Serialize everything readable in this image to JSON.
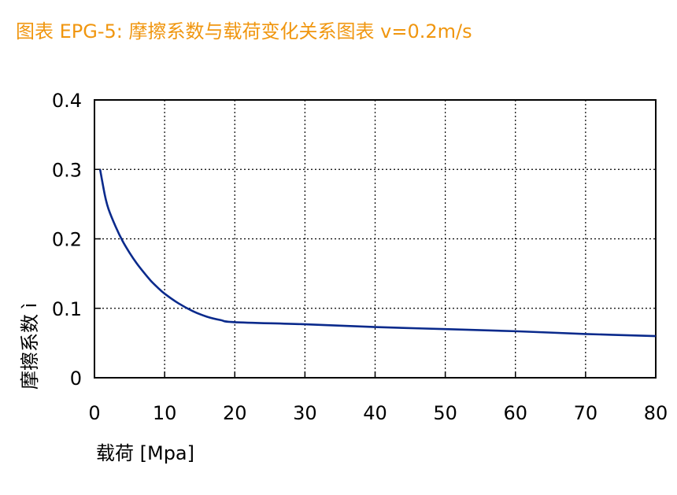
{
  "chart_data": {
    "type": "line",
    "title": "图表 EPG-5: 摩擦系数与载荷变化关系图表 v=0.2m/s",
    "xlabel": "载荷 [Mpa]",
    "ylabel": "摩擦系数 ì",
    "xlim": [
      0,
      80
    ],
    "ylim": [
      0,
      0.4
    ],
    "xticks": [
      "0",
      "10",
      "20",
      "30",
      "40",
      "50",
      "60",
      "70",
      "80"
    ],
    "yticks": [
      "0",
      "0.1",
      "0.2",
      "0.3",
      "0.4"
    ],
    "grid": true,
    "colors": {
      "title": "#f0960f",
      "series": "#0a2a8c",
      "grid": "#000000"
    },
    "series": [
      {
        "x": [
          0.8,
          1.5,
          2,
          3,
          4,
          5,
          6,
          7,
          8,
          9,
          10,
          12,
          14,
          16,
          18,
          20,
          30,
          40,
          50,
          60,
          70,
          80
        ],
        "y": [
          0.3,
          0.262,
          0.243,
          0.218,
          0.197,
          0.18,
          0.165,
          0.152,
          0.14,
          0.13,
          0.121,
          0.107,
          0.096,
          0.088,
          0.083,
          0.08,
          0.077,
          0.073,
          0.07,
          0.067,
          0.063,
          0.06
        ]
      }
    ]
  }
}
